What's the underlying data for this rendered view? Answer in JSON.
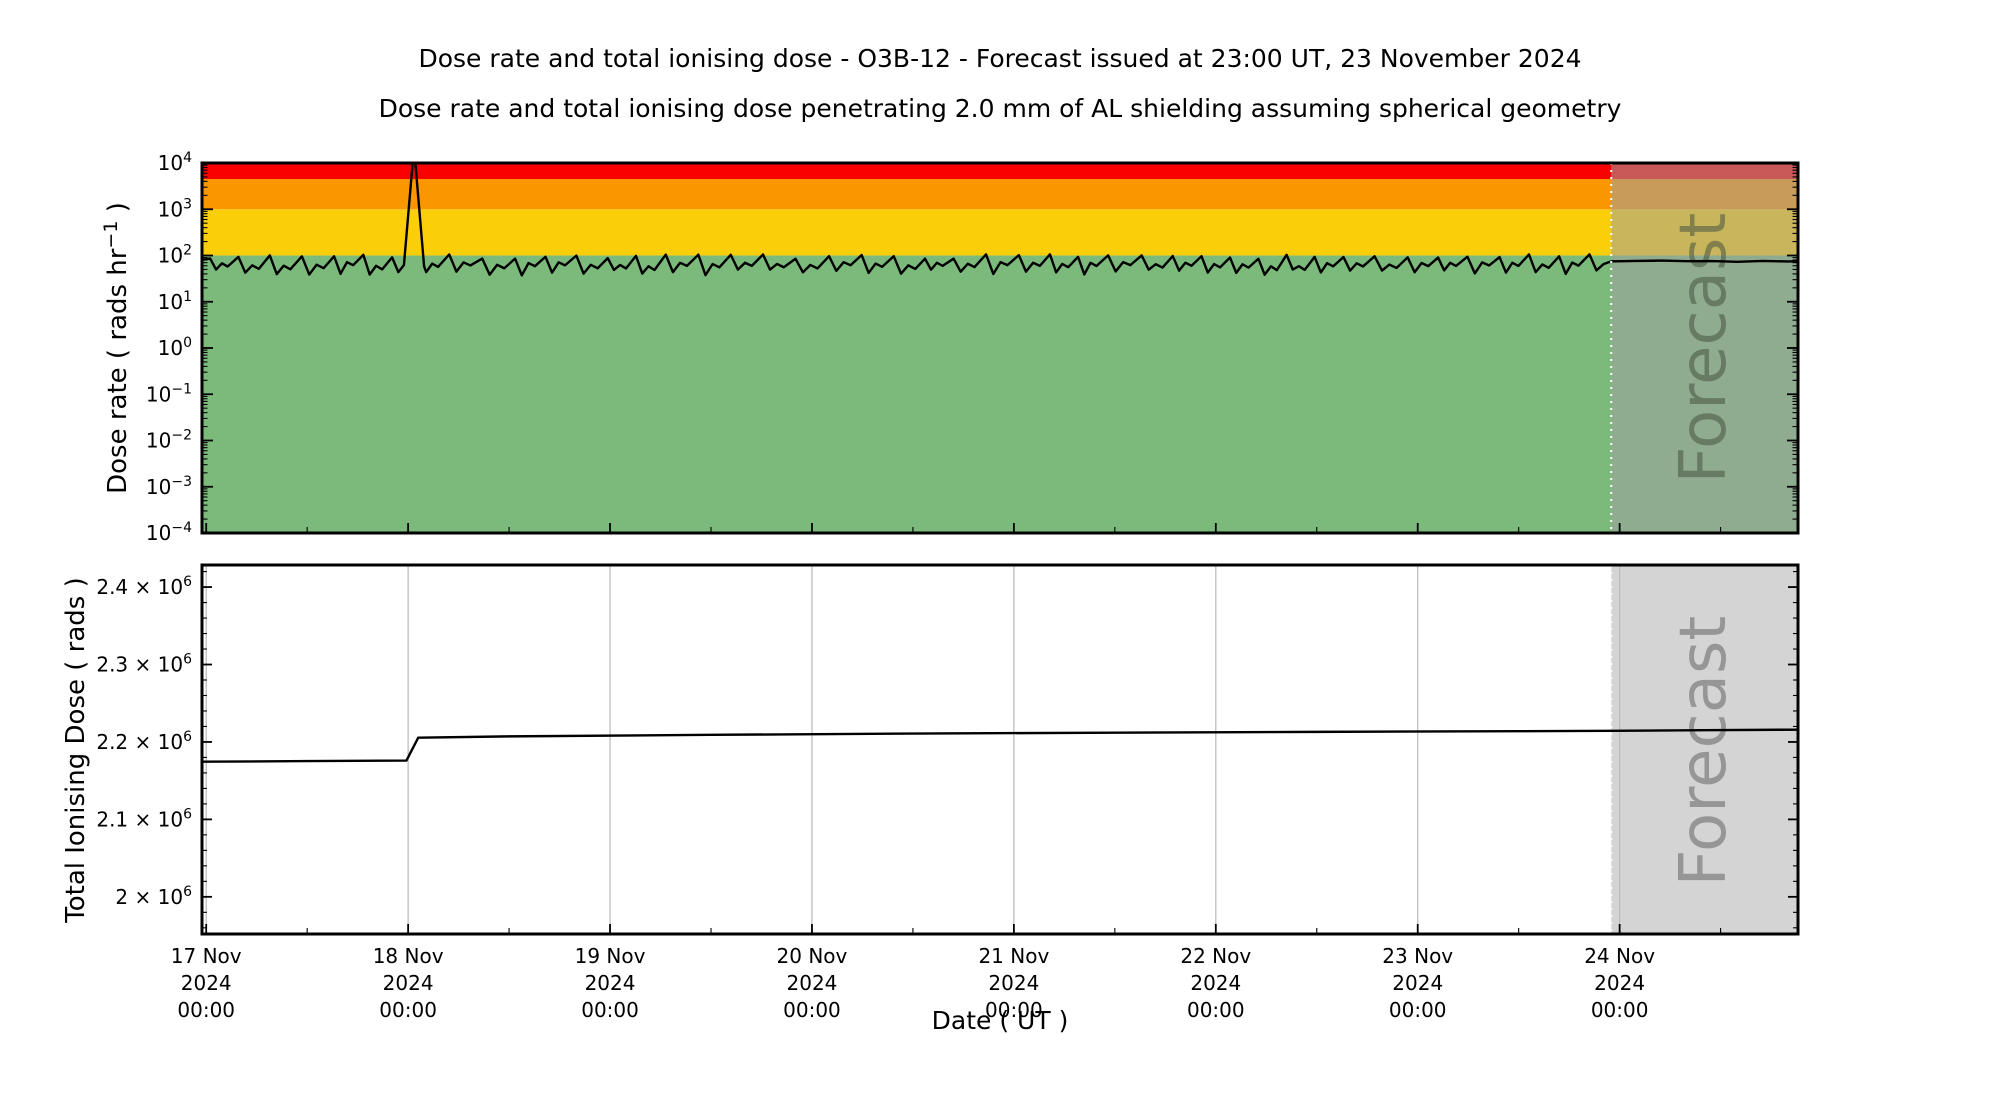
{
  "figure": {
    "title": "Dose rate and total ionising dose - O3B-12 - Forecast issued at 23:00 UT, 23 November 2024",
    "subtitle": "Dose rate and total ionising dose penetrating 2.0 mm of AL shielding assuming spherical geometry",
    "xlabel": "Date ( UT )",
    "watermark": "Forecast",
    "colors": {
      "background": "#ffffff",
      "spine": "#000000",
      "data_line": "#000000",
      "gridline": "#b8b8b8",
      "band_green": "#7cba7c",
      "band_yellow": "#fbce0a",
      "band_orange": "#fa9600",
      "band_red": "#fa0000",
      "forecast_overlay_top": "rgba(160,160,160,0.55)",
      "forecast_overlay_bottom": "rgba(185,185,185,0.62)",
      "forecast_divider": "#ffffff",
      "watermark_top": "#46543f",
      "watermark_bottom": "#8f8f8f"
    }
  },
  "time_axis": {
    "origin": "17 Nov 2024 00:00 UT",
    "xlim_hours": [
      -0.5,
      189.2
    ],
    "forecast_start_hours": 167,
    "forecast_issue_label": "23:00 UT, 23 November 2024",
    "major_ticks": [
      {
        "hours": 0,
        "lines": [
          "17 Nov",
          "2024",
          "00:00"
        ]
      },
      {
        "hours": 24,
        "lines": [
          "18 Nov",
          "2024",
          "00:00"
        ]
      },
      {
        "hours": 48,
        "lines": [
          "19 Nov",
          "2024",
          "00:00"
        ]
      },
      {
        "hours": 72,
        "lines": [
          "20 Nov",
          "2024",
          "00:00"
        ]
      },
      {
        "hours": 96,
        "lines": [
          "21 Nov",
          "2024",
          "00:00"
        ]
      },
      {
        "hours": 120,
        "lines": [
          "22 Nov",
          "2024",
          "00:00"
        ]
      },
      {
        "hours": 144,
        "lines": [
          "23 Nov",
          "2024",
          "00:00"
        ]
      },
      {
        "hours": 168,
        "lines": [
          "24 Nov",
          "2024",
          "00:00"
        ]
      }
    ],
    "minor_tick_hours": [
      12,
      36,
      60,
      84,
      108,
      132,
      156,
      180
    ]
  },
  "chart_data": [
    {
      "type": "line",
      "name": "dose-rate",
      "ylabel": {
        "pre": "Dose rate ( rads hr",
        "sup": "−1",
        "post": " )"
      },
      "yscale": "log",
      "ylim": [
        0.0001,
        10000
      ],
      "yticks": [
        {
          "label": "4",
          "value": 10000
        },
        {
          "label": "3",
          "value": 1000
        },
        {
          "label": "2",
          "value": 100
        },
        {
          "label": "1",
          "value": 10
        },
        {
          "label": "0",
          "value": 1
        },
        {
          "label": "−1",
          "value": 0.1
        },
        {
          "label": "−2",
          "value": 0.01
        },
        {
          "label": "−3",
          "value": 0.001
        },
        {
          "label": "−4",
          "value": 0.0001
        }
      ],
      "bands": [
        {
          "label": "green",
          "from": 0.0001,
          "to": 100,
          "color_key": "band_green"
        },
        {
          "label": "yellow",
          "from": 100,
          "to": 1000,
          "color_key": "band_yellow"
        },
        {
          "label": "orange",
          "from": 1000,
          "to": 4500,
          "color_key": "band_orange"
        },
        {
          "label": "red",
          "from": 4500,
          "to": 10000,
          "color_key": "band_red"
        }
      ],
      "series": {
        "baseline": {
          "description": "quasi-periodic oscillation between ~36 and ~106 rads/hr, period ~3.7 h",
          "seed": 7,
          "cycle_hours": [
            3.2,
            4.2
          ],
          "peak_rads_hr": [
            85,
            106
          ],
          "trough_rads_hr": [
            36,
            50
          ],
          "bump_rads_hr": [
            58,
            72
          ],
          "start_value": 80
        },
        "spike": {
          "description": "sharp spike clipped at 1e4 rads/hr shortly after 18 Nov 00:00 UT",
          "points": [
            [
              23.5,
              62
            ],
            [
              24.7,
              22000
            ],
            [
              25.9,
              58
            ]
          ],
          "clipped_at": 10000
        },
        "forecast": {
          "level_rads_hr": 75,
          "ripple": 3,
          "step_hours": 3
        }
      }
    },
    {
      "type": "line",
      "name": "total-ionising-dose",
      "ylabel": {
        "pre": "Total Ionising Dose ( rads )",
        "sup": "",
        "post": ""
      },
      "yscale": "linear",
      "ylim": [
        1952000,
        2428500
      ],
      "yticks": [
        {
          "mantissa": "2",
          "exponent": "6",
          "value": 2000000
        },
        {
          "mantissa": "2.1",
          "exponent": "6",
          "value": 2100000
        },
        {
          "mantissa": "2.2",
          "exponent": "6",
          "value": 2200000
        },
        {
          "mantissa": "2.3",
          "exponent": "6",
          "value": 2300000
        },
        {
          "mantissa": "2.4",
          "exponent": "6",
          "value": 2400000
        }
      ],
      "minor_step": 20000,
      "points": [
        [
          -0.5,
          2174500
        ],
        [
          12,
          2175300
        ],
        [
          23.8,
          2176000
        ],
        [
          25.2,
          2205500
        ],
        [
          36,
          2207200
        ],
        [
          60,
          2209200
        ],
        [
          84,
          2210800
        ],
        [
          108,
          2212000
        ],
        [
          132,
          2213000
        ],
        [
          156,
          2213900
        ],
        [
          167,
          2214400
        ],
        [
          178,
          2215200
        ],
        [
          189.2,
          2215900
        ]
      ]
    }
  ]
}
